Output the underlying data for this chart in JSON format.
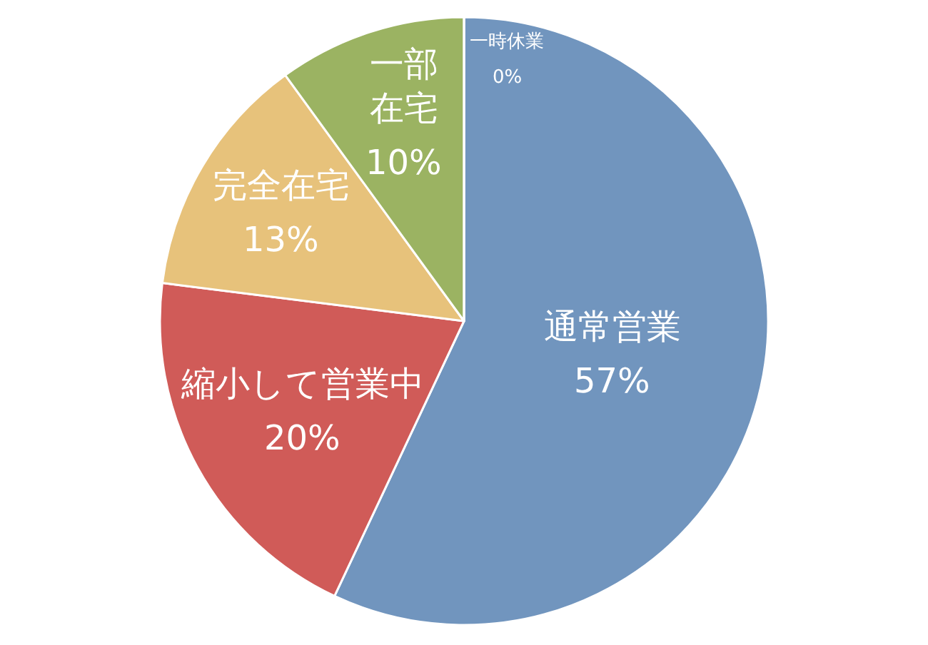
{
  "chart_data": {
    "type": "pie",
    "categories": [
      "通常営業",
      "縮小して営業中",
      "完全在宅",
      "一部在宅",
      "一時休業"
    ],
    "values": [
      57,
      20,
      13,
      10,
      0
    ],
    "colors": [
      "#7195be",
      "#d05b58",
      "#e7c27b",
      "#9bb362",
      "#8064a2"
    ],
    "value_labels": [
      "57%",
      "20%",
      "13%",
      "10%",
      "0%"
    ]
  }
}
